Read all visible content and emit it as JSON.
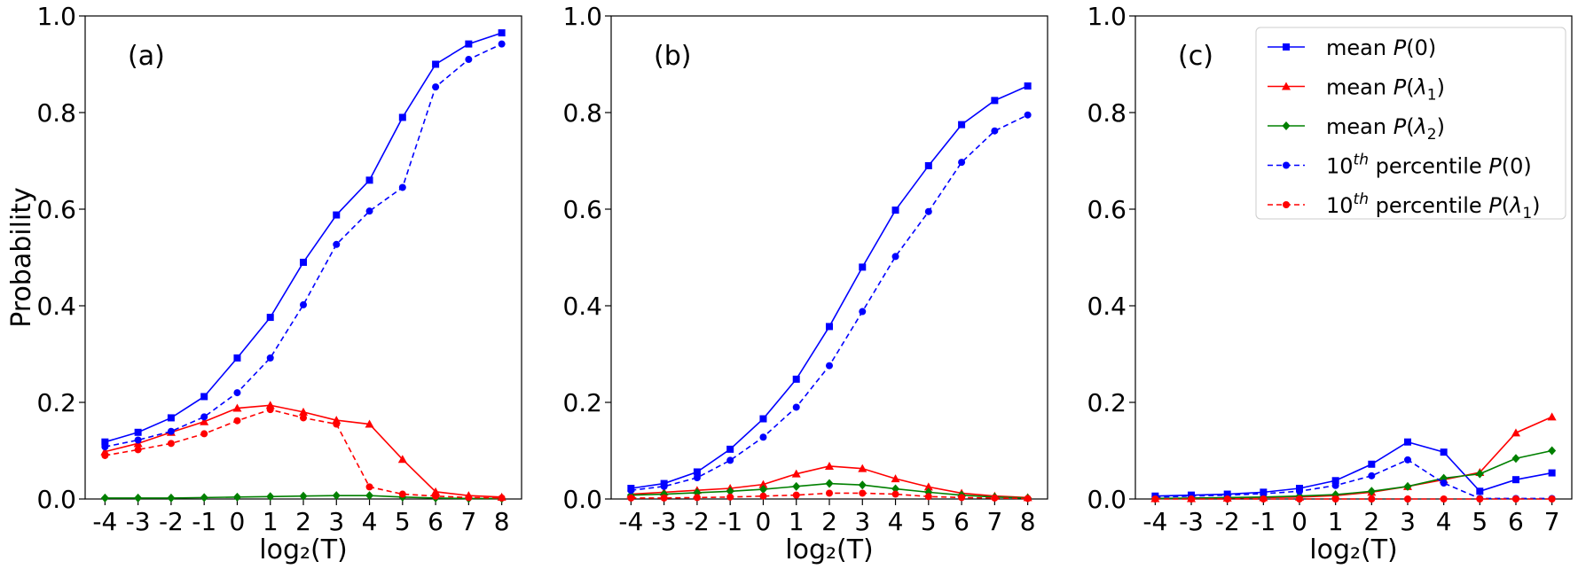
{
  "chart_data": [
    {
      "type": "line",
      "panel_label": "(a)",
      "x": [
        -4,
        -3,
        -2,
        -1,
        0,
        1,
        2,
        3,
        4,
        5,
        6,
        7,
        8
      ],
      "xlabel": "log₂(T)",
      "ylabel": "Probability",
      "ylim": [
        0,
        1.0
      ],
      "yticks": [
        "0.0",
        "0.2",
        "0.4",
        "0.6",
        "0.8",
        "1.0"
      ],
      "series": [
        {
          "key": "mean_p0",
          "style": "solid",
          "marker": "square",
          "color": "#0000ff",
          "values": [
            0.118,
            0.138,
            0.168,
            0.212,
            0.292,
            0.376,
            0.49,
            0.588,
            0.66,
            0.79,
            0.9,
            0.942,
            0.965
          ]
        },
        {
          "key": "mean_pl1",
          "style": "solid",
          "marker": "triangle",
          "color": "#ff0000",
          "values": [
            0.098,
            0.115,
            0.138,
            0.16,
            0.188,
            0.194,
            0.18,
            0.163,
            0.155,
            0.082,
            0.015,
            0.007,
            0.004
          ]
        },
        {
          "key": "mean_pl2",
          "style": "solid",
          "marker": "diamond",
          "color": "#008000",
          "values": [
            0.002,
            0.002,
            0.002,
            0.003,
            0.004,
            0.005,
            0.006,
            0.007,
            0.007,
            0.004,
            0.002,
            0.001,
            0.001
          ]
        },
        {
          "key": "p10_p0",
          "style": "dashed",
          "marker": "circle",
          "color": "#0000ff",
          "values": [
            0.108,
            0.122,
            0.14,
            0.17,
            0.22,
            0.292,
            0.402,
            0.527,
            0.596,
            0.645,
            0.853,
            0.91,
            0.942
          ]
        },
        {
          "key": "p10_pl1",
          "style": "dashed",
          "marker": "circle",
          "color": "#ff0000",
          "values": [
            0.09,
            0.102,
            0.115,
            0.135,
            0.162,
            0.185,
            0.168,
            0.155,
            0.025,
            0.01,
            0.006,
            0.003,
            0.002
          ]
        }
      ]
    },
    {
      "type": "line",
      "panel_label": "(b)",
      "x": [
        -4,
        -3,
        -2,
        -1,
        0,
        1,
        2,
        3,
        4,
        5,
        6,
        7,
        8
      ],
      "xlabel": "log₂(T)",
      "ylabel": "",
      "ylim": [
        0,
        1.0
      ],
      "yticks": [
        "0.0",
        "0.2",
        "0.4",
        "0.6",
        "0.8",
        "1.0"
      ],
      "series": [
        {
          "key": "mean_p0",
          "style": "solid",
          "marker": "square",
          "color": "#0000ff",
          "values": [
            0.022,
            0.032,
            0.056,
            0.103,
            0.166,
            0.248,
            0.357,
            0.48,
            0.598,
            0.69,
            0.775,
            0.825,
            0.855
          ]
        },
        {
          "key": "mean_pl1",
          "style": "solid",
          "marker": "triangle",
          "color": "#ff0000",
          "values": [
            0.01,
            0.014,
            0.018,
            0.022,
            0.03,
            0.052,
            0.068,
            0.063,
            0.042,
            0.025,
            0.012,
            0.006,
            0.003
          ]
        },
        {
          "key": "mean_pl2",
          "style": "solid",
          "marker": "diamond",
          "color": "#008000",
          "values": [
            0.008,
            0.01,
            0.013,
            0.016,
            0.02,
            0.026,
            0.032,
            0.029,
            0.021,
            0.014,
            0.008,
            0.004,
            0.002
          ]
        },
        {
          "key": "p10_p0",
          "style": "dashed",
          "marker": "circle",
          "color": "#0000ff",
          "values": [
            0.018,
            0.026,
            0.044,
            0.08,
            0.128,
            0.19,
            0.276,
            0.388,
            0.502,
            0.595,
            0.697,
            0.762,
            0.795
          ]
        },
        {
          "key": "p10_pl1",
          "style": "dashed",
          "marker": "circle",
          "color": "#ff0000",
          "values": [
            0.002,
            0.002,
            0.003,
            0.004,
            0.006,
            0.008,
            0.012,
            0.012,
            0.01,
            0.005,
            0.003,
            0.002,
            0.001
          ]
        }
      ]
    },
    {
      "type": "line",
      "panel_label": "(c)",
      "x": [
        -4,
        -3,
        -2,
        -1,
        0,
        1,
        2,
        3,
        4,
        5,
        6,
        7
      ],
      "xlabel": "log₂(T)",
      "ylabel": "",
      "ylim": [
        0,
        1.0
      ],
      "yticks": [
        "0.0",
        "0.2",
        "0.4",
        "0.6",
        "0.8",
        "1.0"
      ],
      "legend_position": "top-right",
      "series": [
        {
          "key": "mean_p0",
          "style": "solid",
          "marker": "square",
          "color": "#0000ff",
          "values": [
            0.006,
            0.008,
            0.01,
            0.014,
            0.022,
            0.038,
            0.072,
            0.118,
            0.097,
            0.016,
            0.04,
            0.054
          ]
        },
        {
          "key": "mean_pl1",
          "style": "solid",
          "marker": "triangle",
          "color": "#ff0000",
          "values": [
            0.001,
            0.001,
            0.002,
            0.003,
            0.004,
            0.007,
            0.014,
            0.026,
            0.04,
            0.055,
            0.137,
            0.17
          ]
        },
        {
          "key": "mean_pl2",
          "style": "solid",
          "marker": "diamond",
          "color": "#008000",
          "values": [
            0.001,
            0.002,
            0.003,
            0.004,
            0.006,
            0.009,
            0.016,
            0.026,
            0.043,
            0.052,
            0.084,
            0.1
          ]
        },
        {
          "key": "p10_p0",
          "style": "dashed",
          "marker": "circle",
          "color": "#0000ff",
          "values": [
            0.004,
            0.006,
            0.008,
            0.011,
            0.016,
            0.028,
            0.048,
            0.081,
            0.033,
            0.001,
            0.001,
            0.001
          ]
        },
        {
          "key": "p10_pl1",
          "style": "dashed",
          "marker": "circle",
          "color": "#ff0000",
          "values": [
            0.0,
            0.0,
            0.0,
            0.0,
            0.0,
            0.0,
            0.0,
            0.0,
            0.0,
            0.0,
            0.0,
            0.0
          ]
        }
      ]
    }
  ],
  "legend": {
    "entries": [
      {
        "key": "mean_p0",
        "prefix": "mean ",
        "sup": "",
        "after_sup": "",
        "func": "P",
        "arg": "0",
        "sub": ""
      },
      {
        "key": "mean_pl1",
        "prefix": "mean ",
        "sup": "",
        "after_sup": "",
        "func": "P",
        "arg": "λ",
        "sub": "1"
      },
      {
        "key": "mean_pl2",
        "prefix": "mean ",
        "sup": "",
        "after_sup": "",
        "func": "P",
        "arg": "λ",
        "sub": "2"
      },
      {
        "key": "p10_p0",
        "prefix": "10",
        "sup": "th",
        "after_sup": " percentile ",
        "func": "P",
        "arg": "0",
        "sub": ""
      },
      {
        "key": "p10_pl1",
        "prefix": "10",
        "sup": "th",
        "after_sup": " percentile ",
        "func": "P",
        "arg": "λ",
        "sub": "1"
      }
    ]
  }
}
